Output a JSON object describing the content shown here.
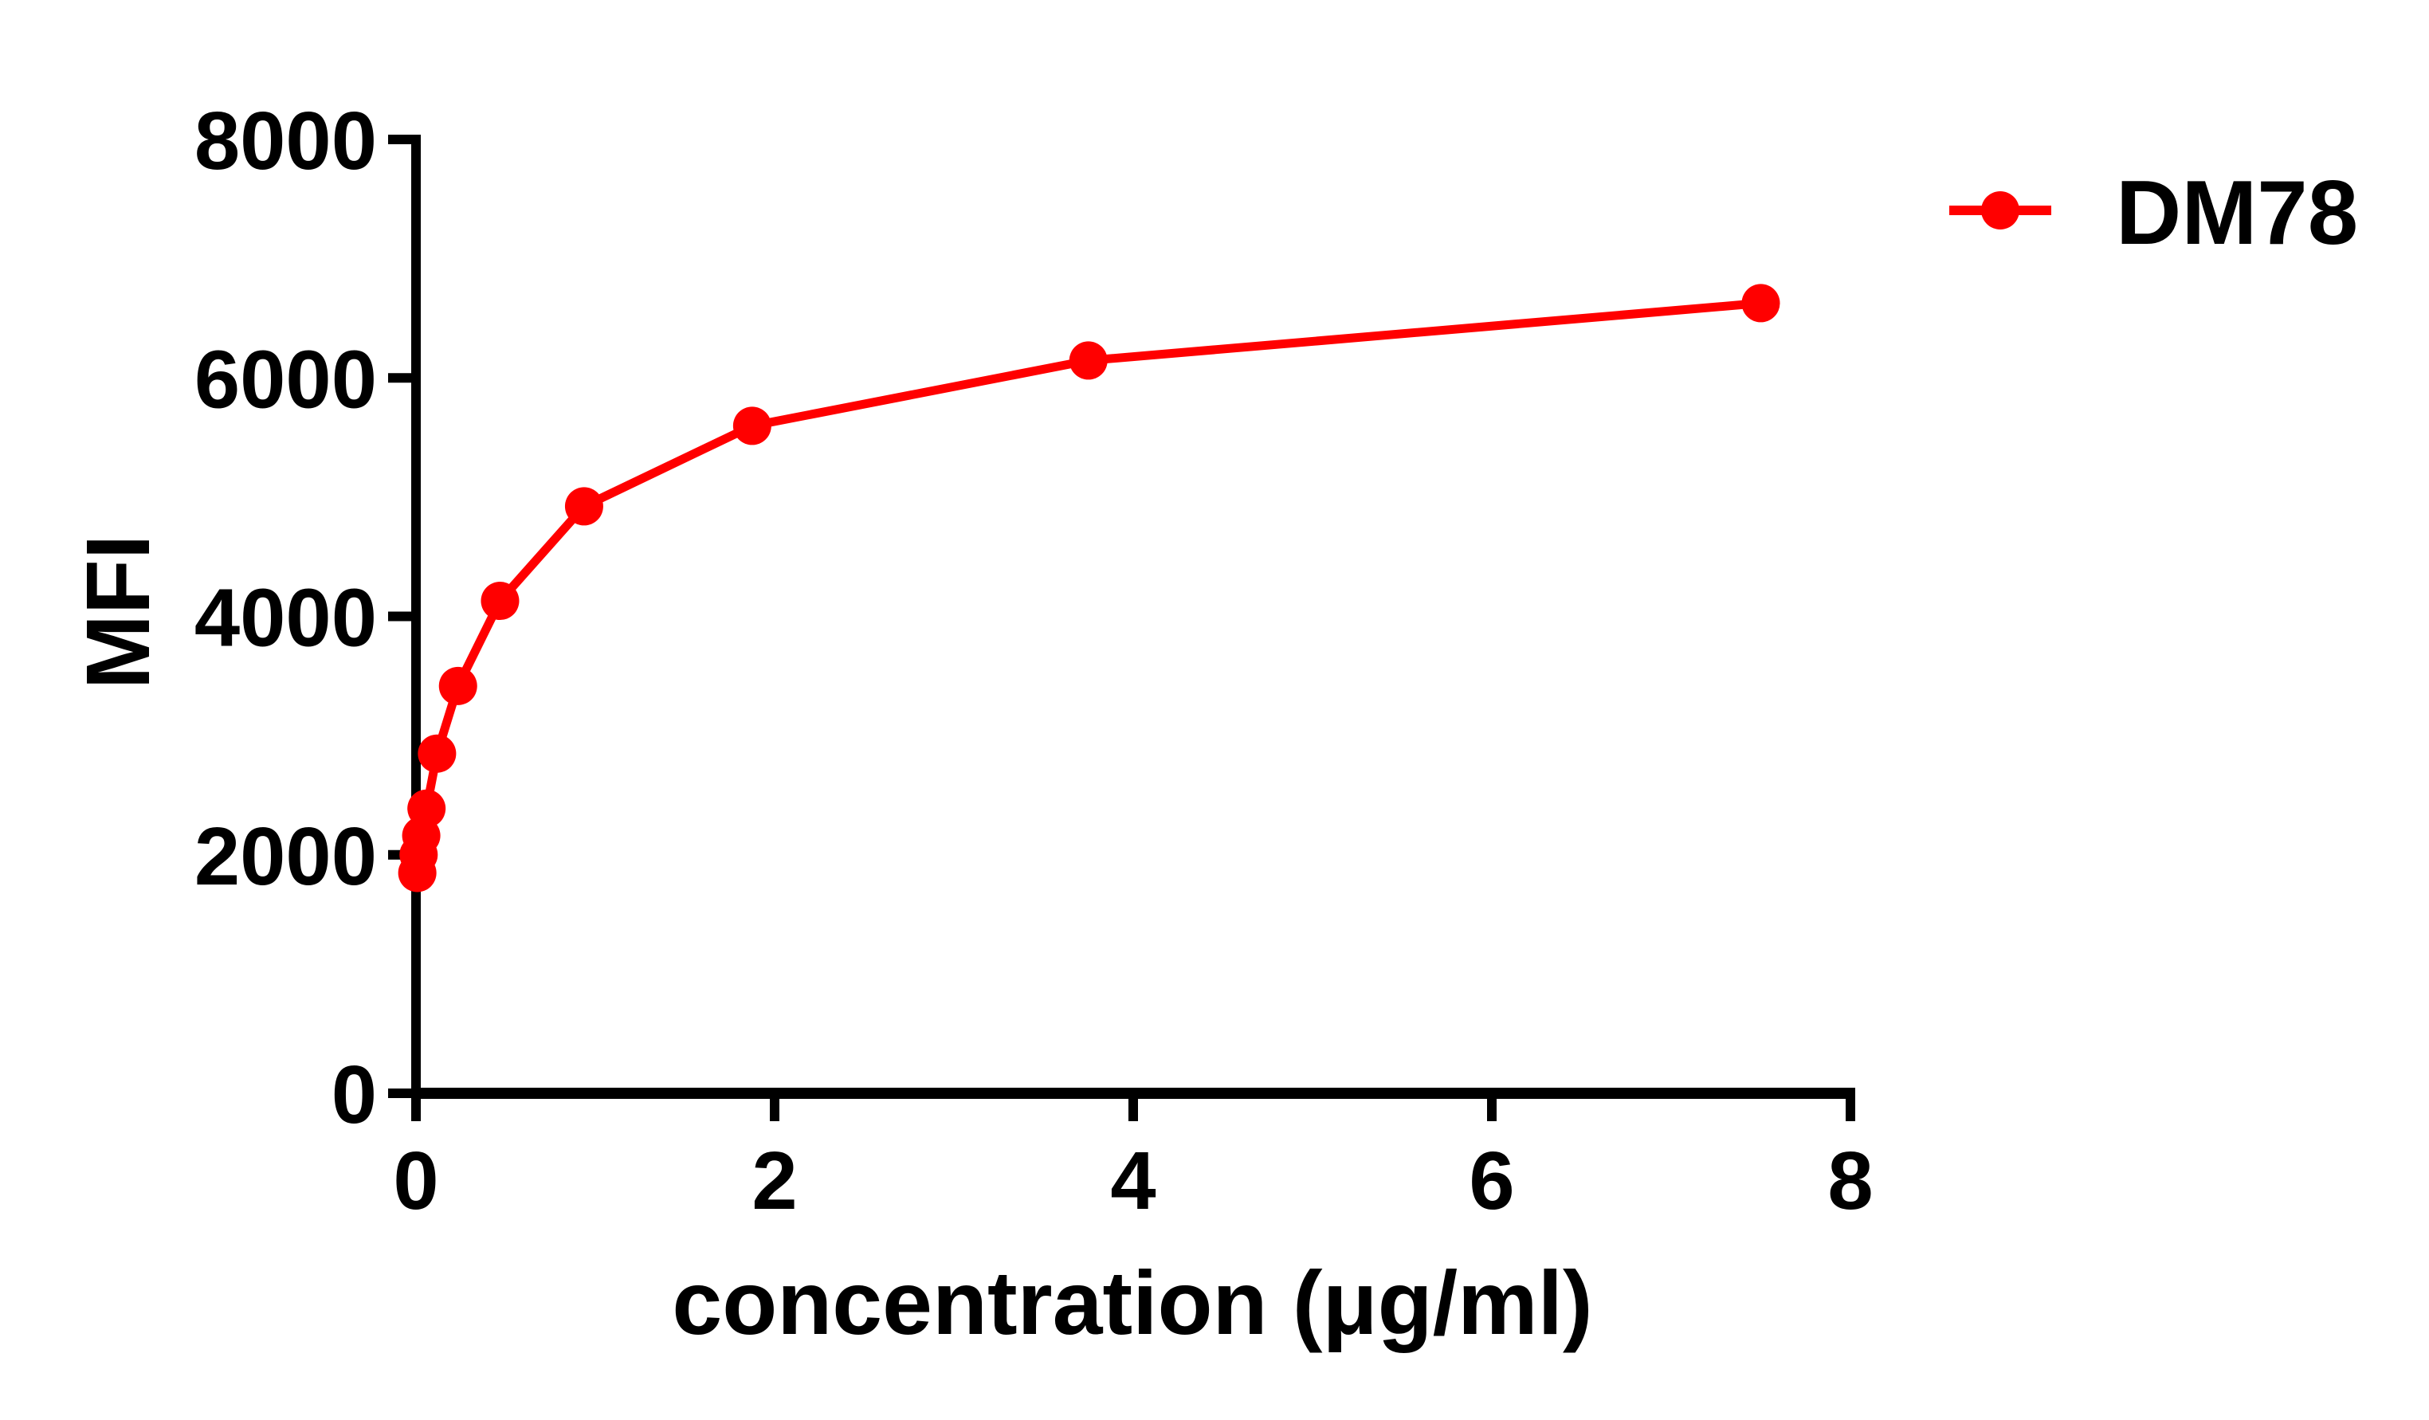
{
  "chart_data": {
    "type": "line",
    "title": "",
    "xlabel": "concentration (μg/ml)",
    "ylabel": "MFI",
    "xlim": [
      0,
      8
    ],
    "ylim": [
      0,
      8000
    ],
    "x_ticks": [
      0,
      2,
      4,
      6,
      8
    ],
    "y_ticks": [
      0,
      2000,
      4000,
      6000,
      8000
    ],
    "x_tick_labels": [
      "0",
      "2",
      "4",
      "6",
      "8"
    ],
    "y_tick_labels": [
      "0",
      "2000",
      "4000",
      "6000",
      "8000"
    ],
    "grid": false,
    "legend_position": "top-right, outside plot area",
    "series": [
      {
        "name": "DM78",
        "color": "#FF0000",
        "marker": "filled-circle",
        "x": [
          0.0073,
          0.0146,
          0.0293,
          0.0586,
          0.1172,
          0.2344,
          0.4688,
          0.9375,
          1.875,
          3.75,
          7.5
        ],
        "y": [
          1848,
          2001,
          2161,
          2388,
          2849,
          3416,
          4130,
          4923,
          5598,
          6146,
          6627
        ]
      }
    ]
  },
  "legend": {
    "label": "DM78"
  },
  "axes": {
    "x_title": "concentration (μg/ml)",
    "y_title": "MFI"
  }
}
